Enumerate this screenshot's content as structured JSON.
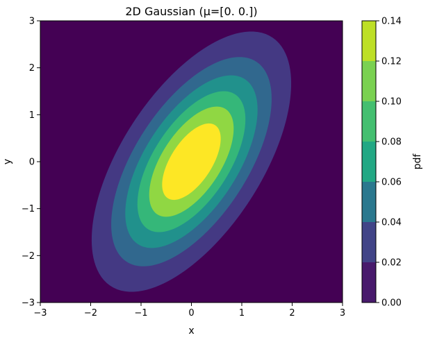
{
  "chart_data": {
    "type": "heatmap",
    "subtype": "filled-contour",
    "title": "2D Gaussian (μ=[0. 0.])",
    "xlabel": "x",
    "ylabel": "y",
    "xlim": [
      -3,
      3
    ],
    "ylim": [
      -3,
      3
    ],
    "x_ticks": [
      "−3",
      "−2",
      "−1",
      "0",
      "1",
      "2",
      "3"
    ],
    "y_ticks": [
      "−3",
      "−2",
      "−1",
      "0",
      "1",
      "2",
      "3"
    ],
    "grid": false,
    "mean": [
      0,
      0
    ],
    "levels": [
      0.0,
      0.02,
      0.04,
      0.06,
      0.08,
      0.1,
      0.12,
      0.14
    ],
    "contour_extent": {
      "max_y_at_0_02": 2.65,
      "min_y_at_0_02": -2.75,
      "max_x_at_0_02": 1.95,
      "min_x_at_0_02": -2.0,
      "inner_peak_level": 0.12
    },
    "level_colors": [
      "#440154",
      "#443983",
      "#31688e",
      "#21918c",
      "#35b779",
      "#90d743",
      "#fde725"
    ],
    "colorbar": {
      "label": "pdf",
      "tick_labels": [
        "0.00",
        "0.02",
        "0.04",
        "0.06",
        "0.08",
        "0.10",
        "0.12",
        "0.14"
      ],
      "colors": [
        "#481a6c",
        "#414487",
        "#2a788e",
        "#22a884",
        "#44bf70",
        "#7ad151",
        "#bddf26"
      ]
    }
  }
}
